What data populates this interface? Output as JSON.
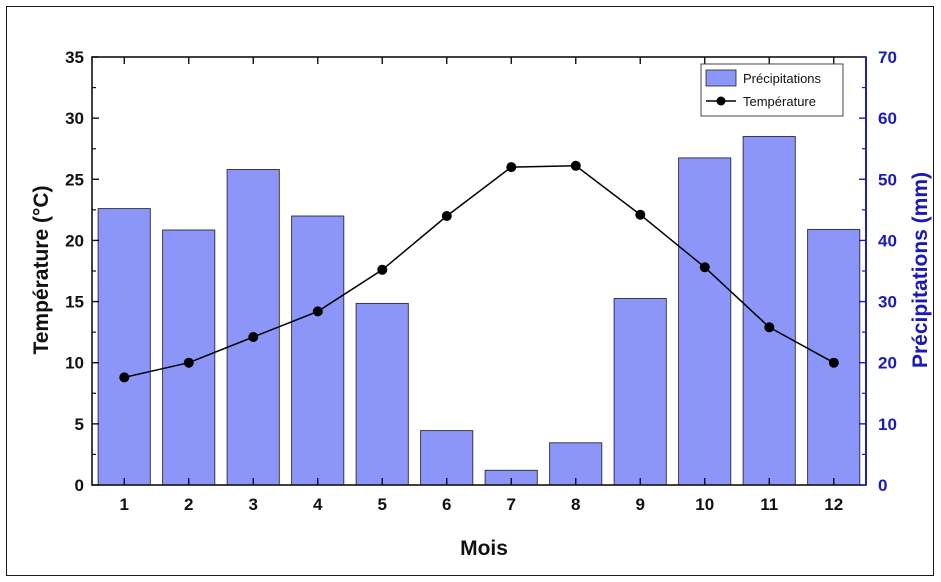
{
  "chart_data": {
    "type": "bar",
    "categories": [
      "1",
      "2",
      "3",
      "4",
      "5",
      "6",
      "7",
      "8",
      "9",
      "10",
      "11",
      "12"
    ],
    "series": [
      {
        "name": "Précipitations",
        "type": "bar",
        "axis": "right",
        "values": [
          45.2,
          41.7,
          51.6,
          44.0,
          29.7,
          8.9,
          2.4,
          6.9,
          30.5,
          53.5,
          57.0,
          41.8
        ],
        "color": "#8c96f8"
      },
      {
        "name": "Température",
        "type": "line",
        "axis": "left",
        "values": [
          8.8,
          10.0,
          12.1,
          14.2,
          17.6,
          22.0,
          26.0,
          26.1,
          22.1,
          17.8,
          12.9,
          10.0
        ],
        "color": "#000000"
      }
    ],
    "xlabel": "Mois",
    "ylabel": "Température (°C)",
    "ylabel_right": "Précipitations (mm)",
    "ylim": [
      0,
      35
    ],
    "ylim_right": [
      0,
      70
    ],
    "yticks": [
      "0",
      "5",
      "10",
      "15",
      "20",
      "25",
      "30",
      "35"
    ],
    "yticks_right": [
      "0",
      "10",
      "20",
      "30",
      "40",
      "50",
      "60",
      "70"
    ],
    "legend_position": "top-right",
    "right_axis_color": "#1a1ab8",
    "grid": false
  }
}
